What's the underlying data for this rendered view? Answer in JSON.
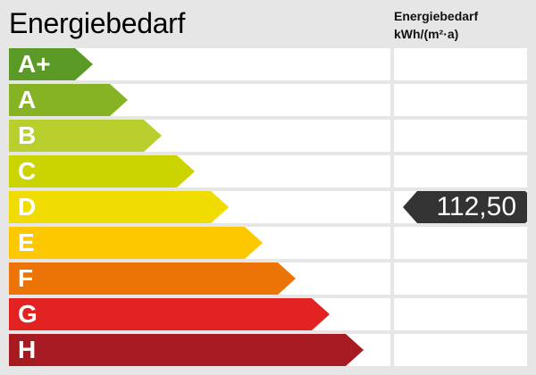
{
  "title": "Energiebedarf",
  "column_header": {
    "line1": "Energiebedarf",
    "line2": "kWh/(m²·a)"
  },
  "classes": [
    {
      "label": "A+",
      "color": "#5b9a27"
    },
    {
      "label": "A",
      "color": "#86b324"
    },
    {
      "label": "B",
      "color": "#b9cf2d"
    },
    {
      "label": "C",
      "color": "#ccd400"
    },
    {
      "label": "D",
      "color": "#f0dc00"
    },
    {
      "label": "E",
      "color": "#fdc800"
    },
    {
      "label": "F",
      "color": "#ec7407"
    },
    {
      "label": "G",
      "color": "#e32322"
    },
    {
      "label": "H",
      "color": "#a81a22"
    }
  ],
  "value": {
    "text": "112,50",
    "class": "D",
    "color": "#333333"
  }
}
